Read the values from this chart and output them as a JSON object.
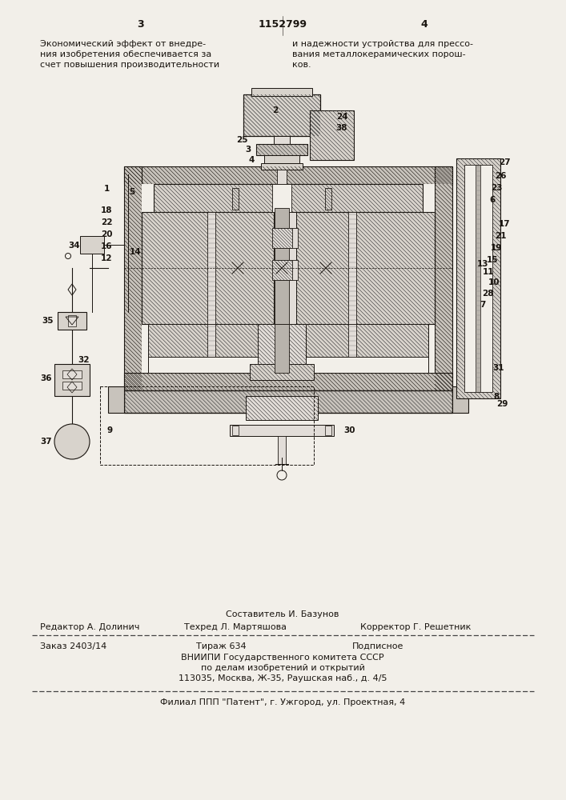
{
  "page_color": "#f2efe9",
  "line_color": "#1a1510",
  "text_color": "#1a1510",
  "hatch_color": "#333333",
  "title_patent": "1152799",
  "page_num_left": "3",
  "page_num_right": "4",
  "text_left_col": "Экономический эффект от внедре-\nния изобретения обеспечивается за\nсчет повышения производительности",
  "text_right_col": "и надежности устройства для прессо-\nвания металлокерамических порош-\nков.",
  "footer_compiler": "Составитель И. Базунов",
  "footer_editor": "Редактор А. Долинич",
  "footer_techred": "Техред Л. Мартяшова",
  "footer_corrector": "Корректор Г. Решетник",
  "footer_order": "Заказ 2403/14",
  "footer_print": "Тираж 634",
  "footer_subscription": "Подписное",
  "footer_org1": "ВНИИПИ Государственного комитета СССР",
  "footer_org2": "по делам изобретений и открытий",
  "footer_org3": "113035, Москва, Ж-35, Раушская наб., д. 4/5",
  "footer_branch": "Филиал ППП \"Патент\", г. Ужгород, ул. Проектная, 4"
}
